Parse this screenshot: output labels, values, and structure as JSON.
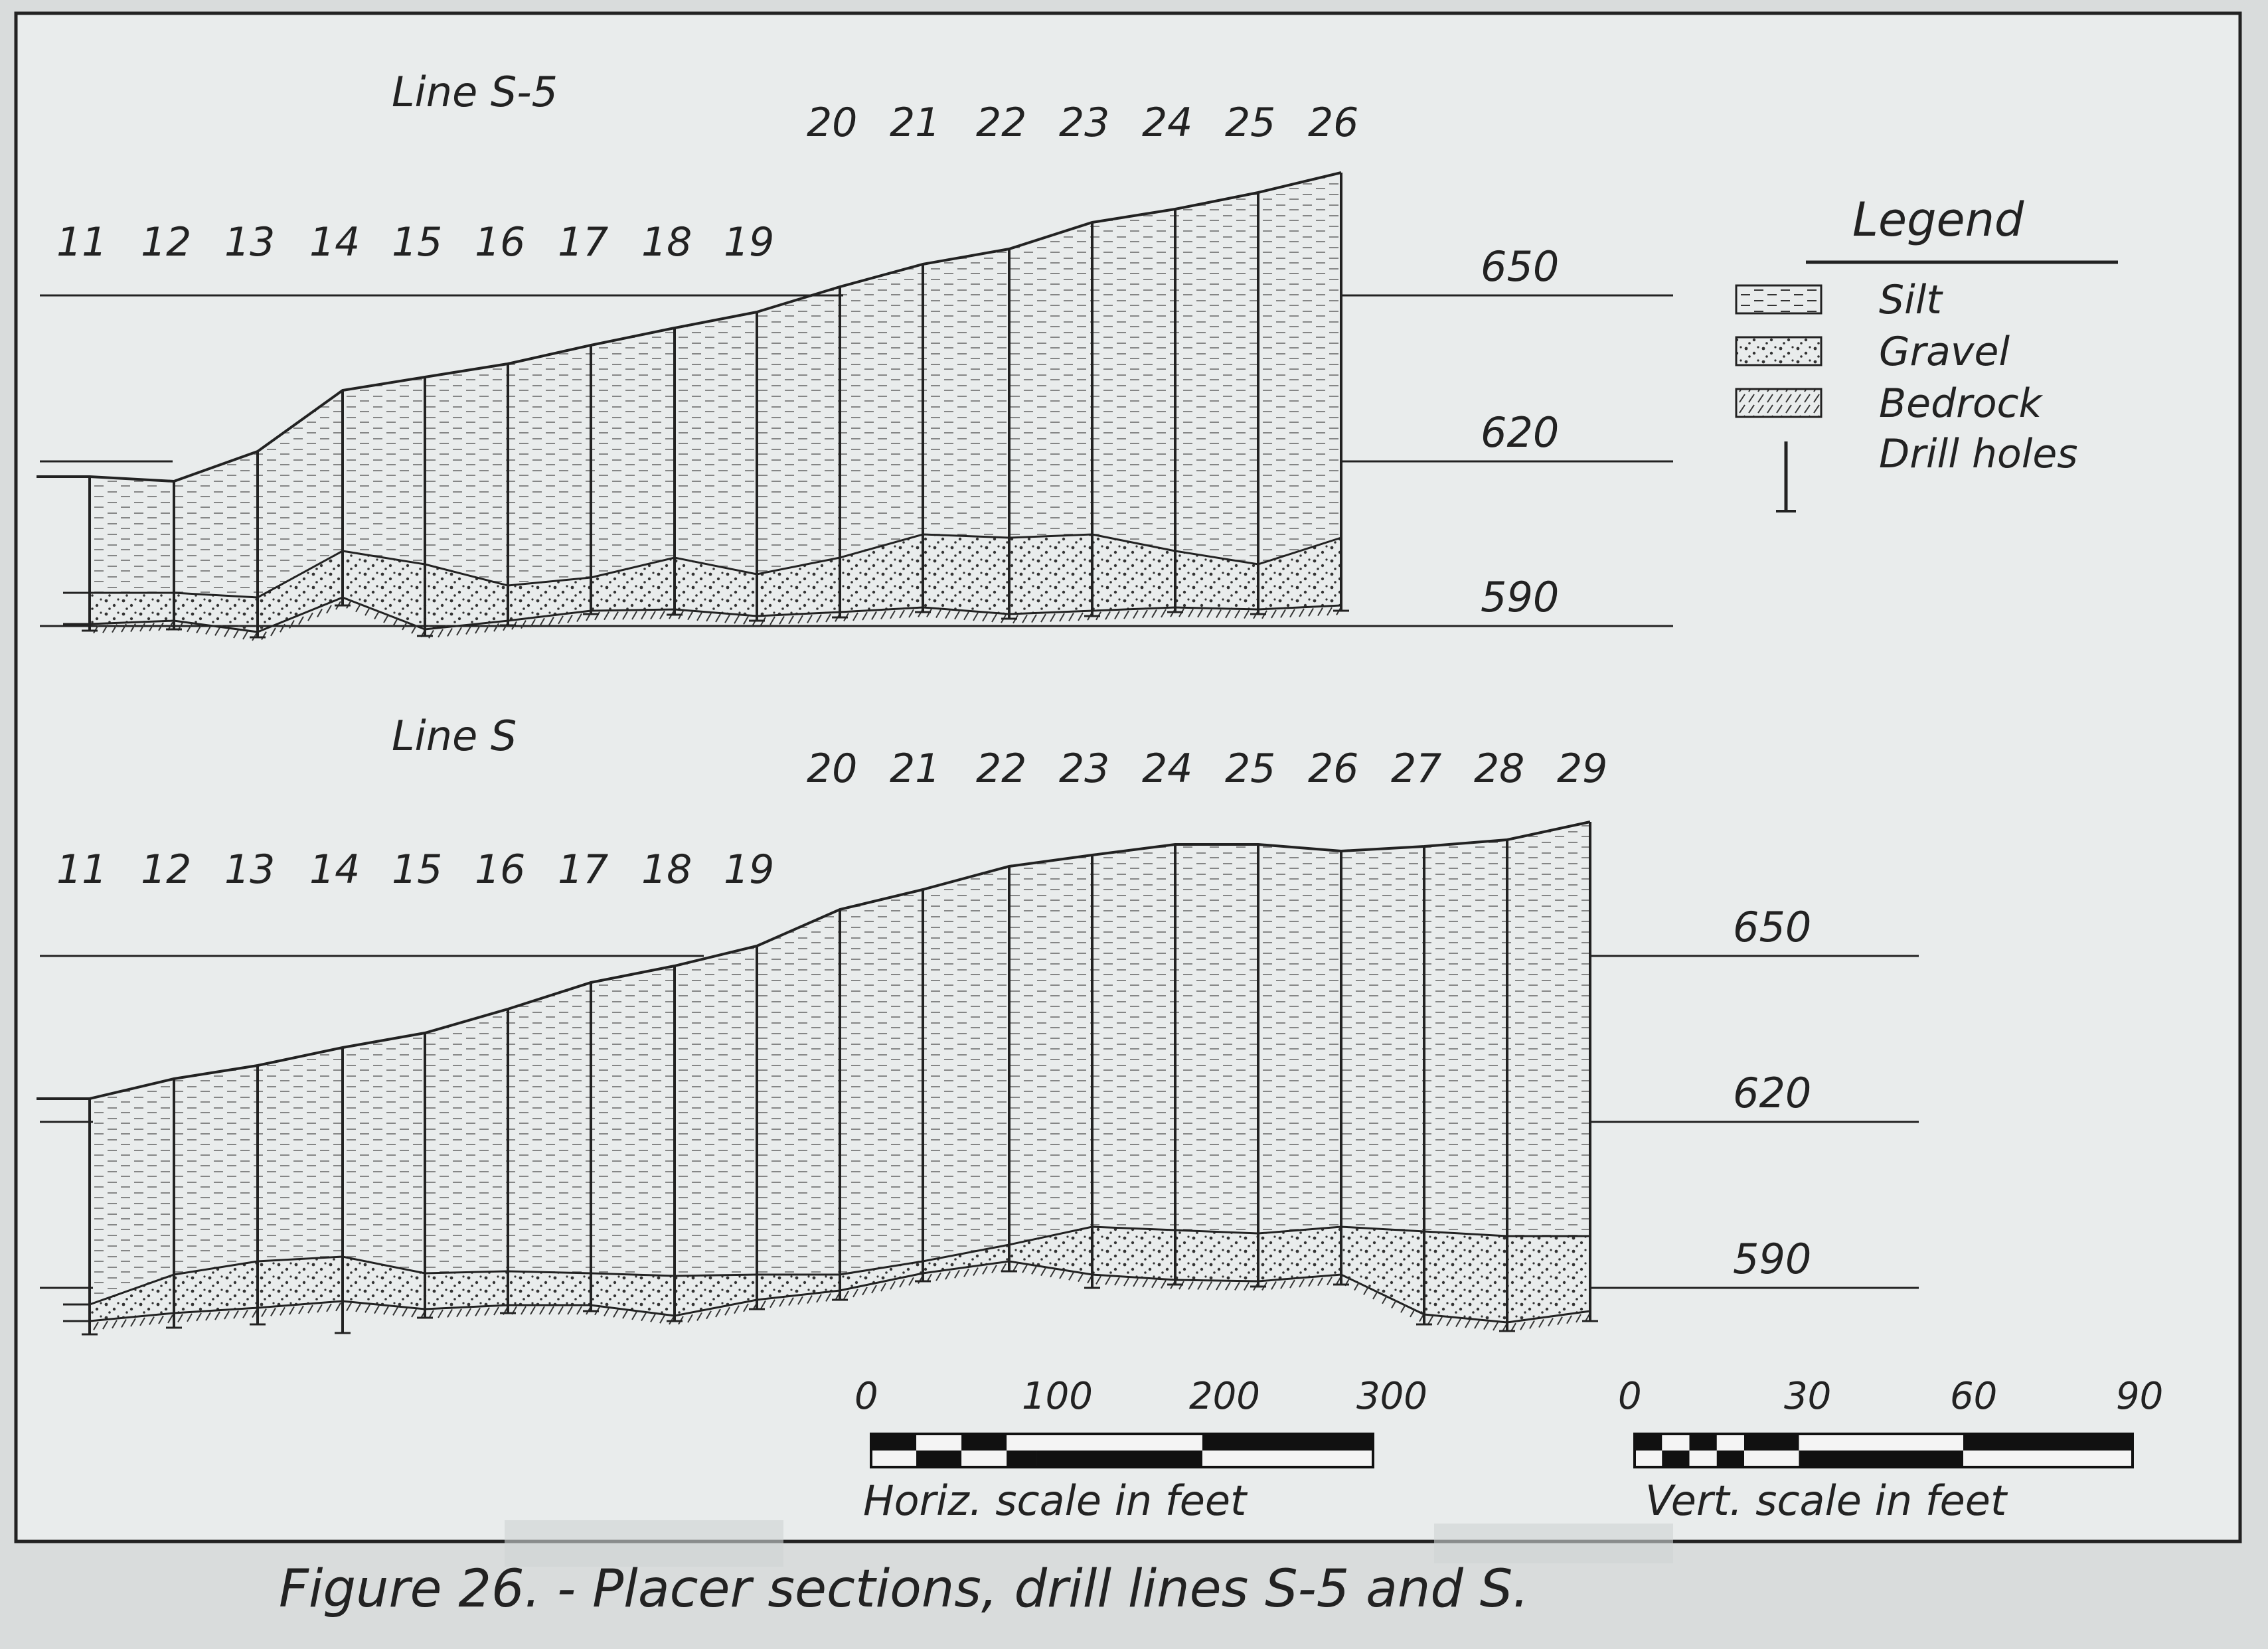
{
  "figure": {
    "caption": "Figure 26. - Placer sections, drill lines S-5 and S."
  },
  "legend": {
    "title": "Legend",
    "items": [
      {
        "label": "Silt",
        "symbol": "silt-icon"
      },
      {
        "label": "Gravel",
        "symbol": "gravel-icon"
      },
      {
        "label": "Bedrock",
        "symbol": "bedrock-icon"
      },
      {
        "label": "Drill holes",
        "symbol": "drill-hole-icon"
      }
    ]
  },
  "sections": [
    {
      "title": "Line S-5",
      "hole_labels": [
        "11",
        "12",
        "13",
        "14",
        "15",
        "16",
        "17",
        "18",
        "19",
        "20",
        "21",
        "22",
        "23",
        "24",
        "25",
        "26"
      ],
      "elevation_labels": [
        "650",
        "620",
        "590"
      ]
    },
    {
      "title": "Line S",
      "hole_labels": [
        "11",
        "12",
        "13",
        "14",
        "15",
        "16",
        "17",
        "18",
        "19",
        "20",
        "21",
        "22",
        "23",
        "24",
        "25",
        "26",
        "27",
        "28",
        "29"
      ],
      "elevation_labels": [
        "650",
        "620",
        "590"
      ]
    }
  ],
  "scales": {
    "horizontal": {
      "ticks": [
        "0",
        "100",
        "200",
        "300"
      ],
      "label": "Horiz. scale in feet"
    },
    "vertical": {
      "ticks": [
        "0",
        "30",
        "60",
        "90"
      ],
      "label": "Vert. scale in feet"
    }
  }
}
